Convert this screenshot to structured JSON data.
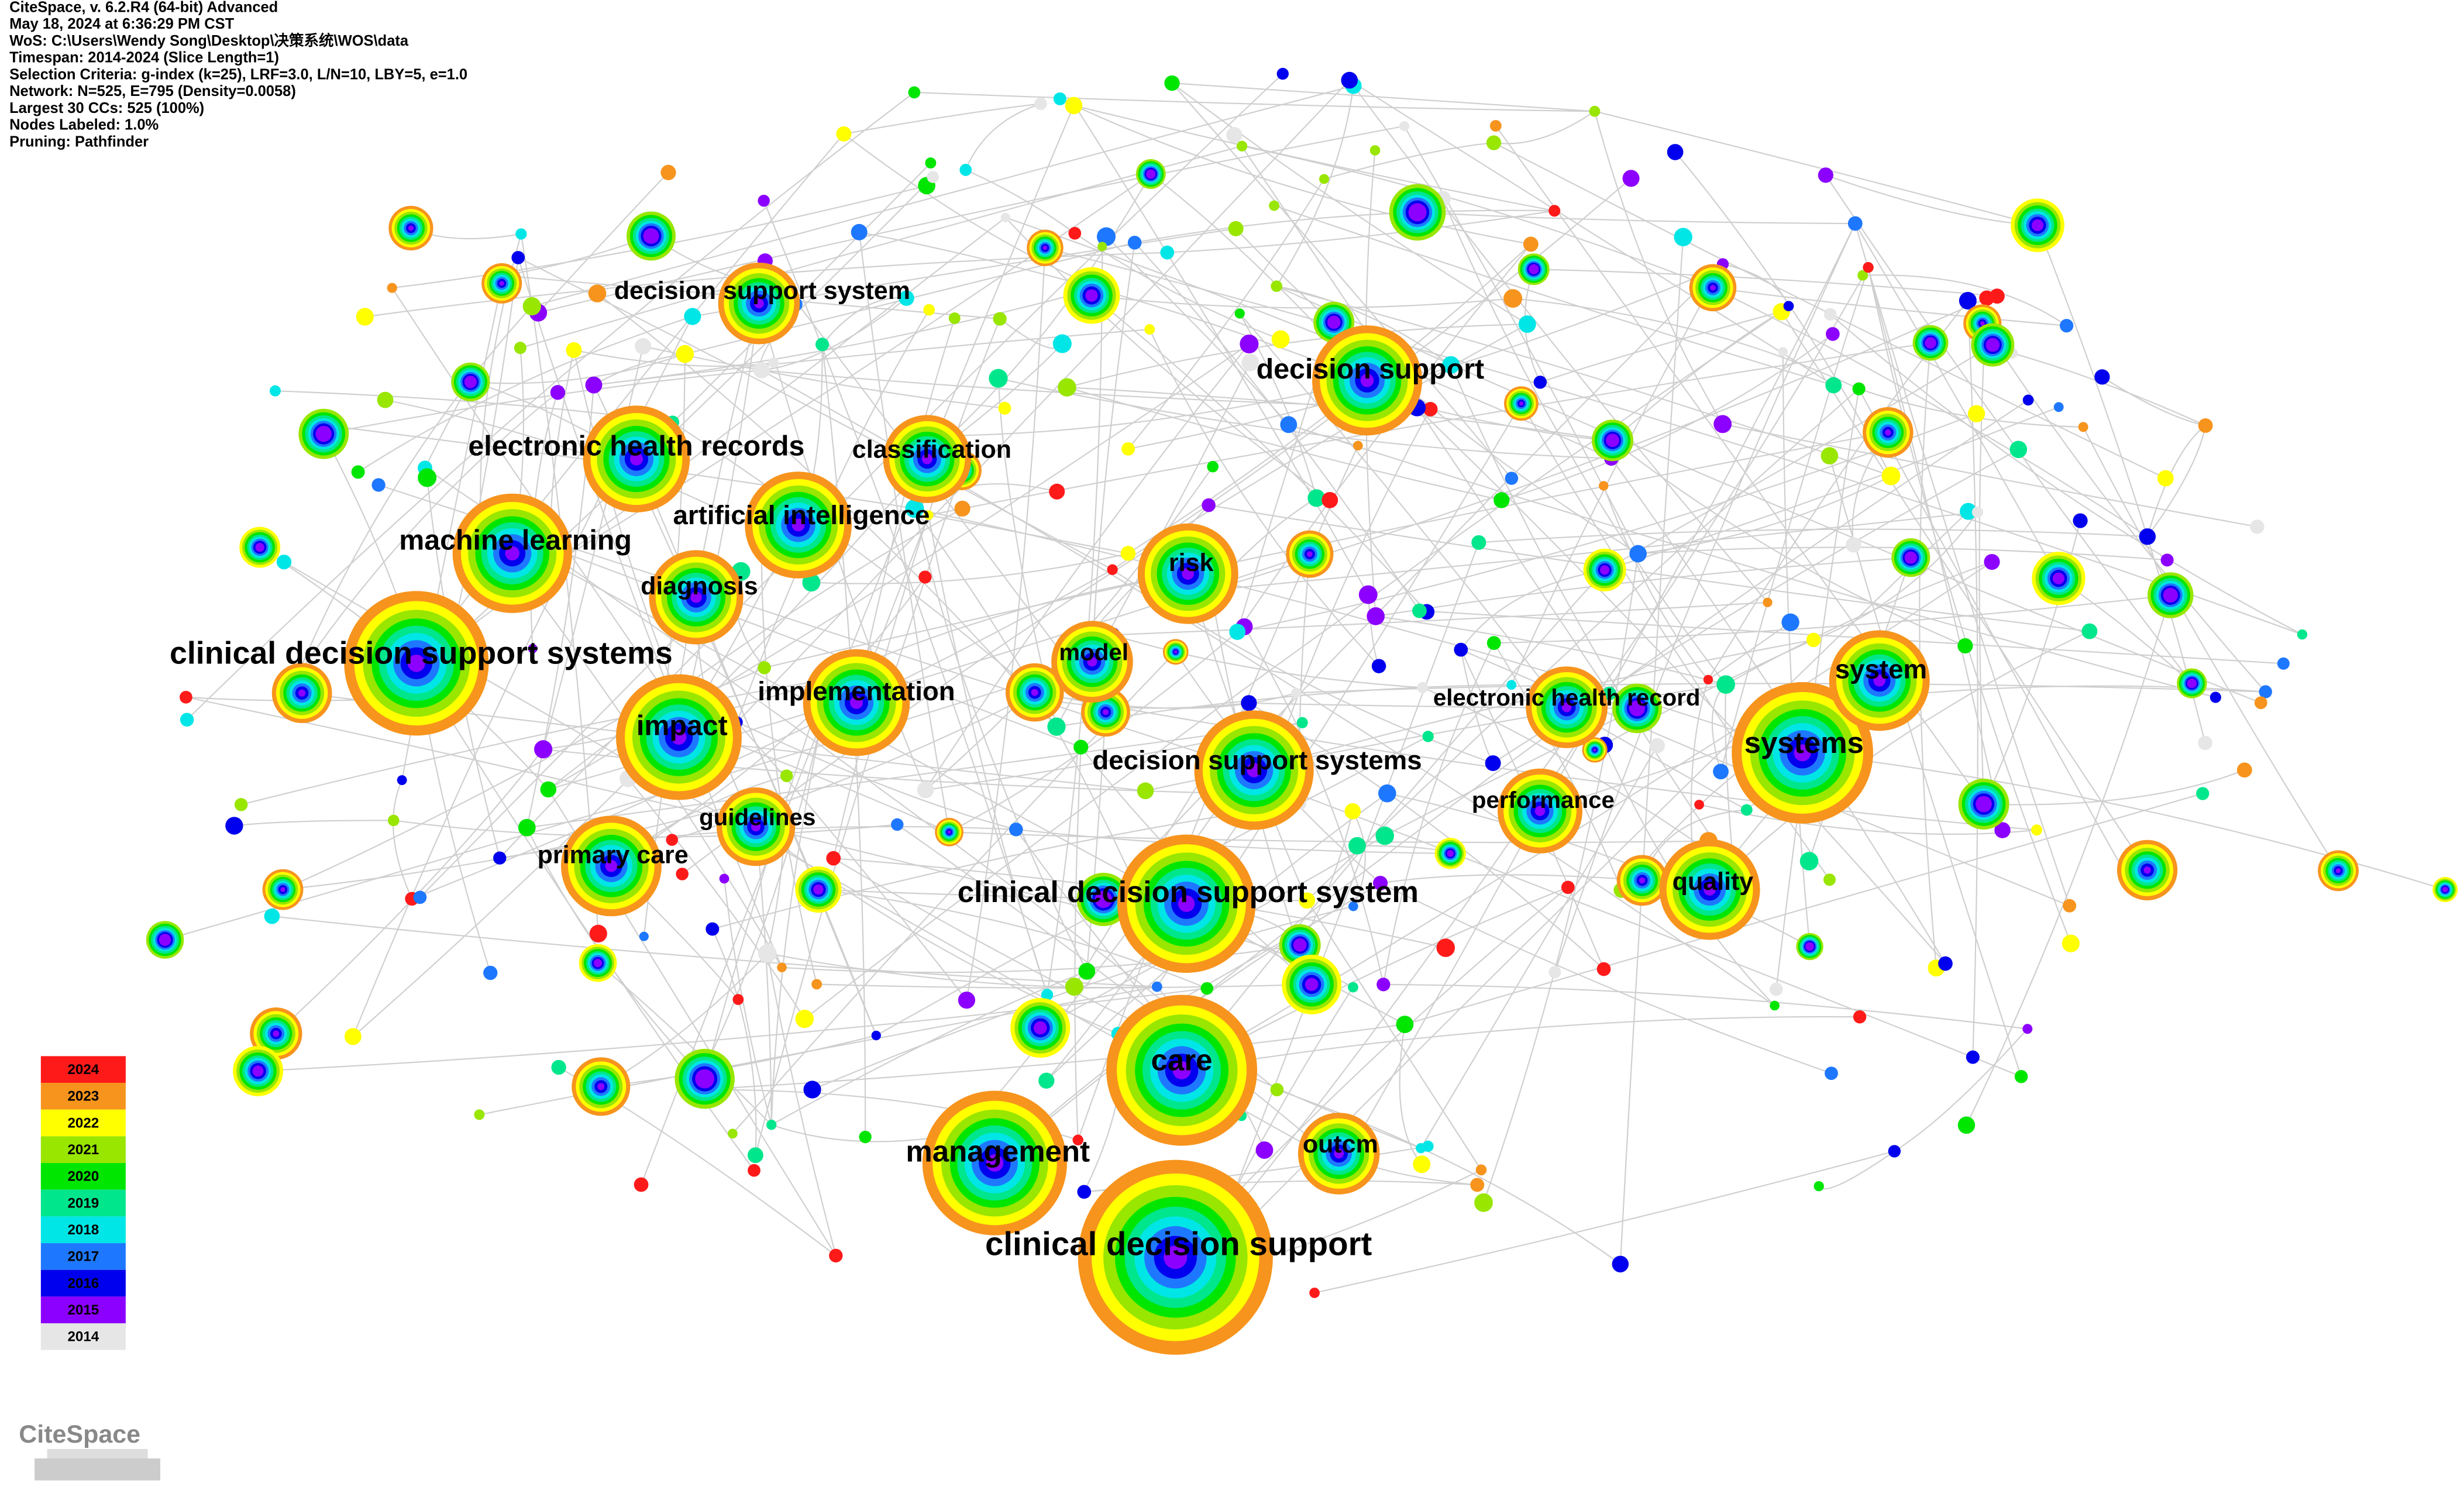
{
  "header": [
    "CiteSpace, v. 6.2.R4 (64-bit) Advanced",
    "May 18, 2024 at 6:36:29 PM CST",
    "WoS: C:\\Users\\Wendy Song\\Desktop\\决策系统\\WOS\\data",
    "Timespan: 2014-2024 (Slice Length=1)",
    "Selection Criteria: g-index (k=25), LRF=3.0, L/N=10, LBY=5, e=1.0",
    "Network: N=525, E=795 (Density=0.0058)",
    "Largest 30 CCs: 525 (100%)",
    "Nodes Labeled: 1.0%",
    "Pruning: Pathfinder"
  ],
  "nodes": [
    {
      "label": "clinical decision support systems"
    },
    {
      "label": "machine learning"
    },
    {
      "label": "electronic health records"
    },
    {
      "label": "decision support system"
    },
    {
      "label": "classification"
    },
    {
      "label": "artificial intelligence"
    },
    {
      "label": "diagnosis"
    },
    {
      "label": "implementation"
    },
    {
      "label": "impact"
    },
    {
      "label": "guidelines"
    },
    {
      "label": "primary care"
    },
    {
      "label": "model"
    },
    {
      "label": "risk"
    },
    {
      "label": "decision support"
    },
    {
      "label": "electronic health record"
    },
    {
      "label": "decision support systems"
    },
    {
      "label": "performance"
    },
    {
      "label": "systems"
    },
    {
      "label": "system"
    },
    {
      "label": "quality"
    },
    {
      "label": "clinical decision support system"
    },
    {
      "label": "care"
    },
    {
      "label": "management"
    },
    {
      "label": "outcm"
    },
    {
      "label": "clinical decision support"
    }
  ],
  "legend": [
    {
      "label": "2024",
      "color": "#ff1a1a"
    },
    {
      "label": "2023",
      "color": "#f7941d"
    },
    {
      "label": "2022",
      "color": "#ffff00"
    },
    {
      "label": "2021",
      "color": "#99e600"
    },
    {
      "label": "2020",
      "color": "#00e600"
    },
    {
      "label": "2019",
      "color": "#00e68c"
    },
    {
      "label": "2018",
      "color": "#00e6e6"
    },
    {
      "label": "2017",
      "color": "#1e78ff"
    },
    {
      "label": "2016",
      "color": "#0000ee"
    },
    {
      "label": "2015",
      "color": "#8c00ff"
    },
    {
      "label": "2014",
      "color": "#e6e6e6"
    }
  ],
  "logo": "CiteSpace"
}
